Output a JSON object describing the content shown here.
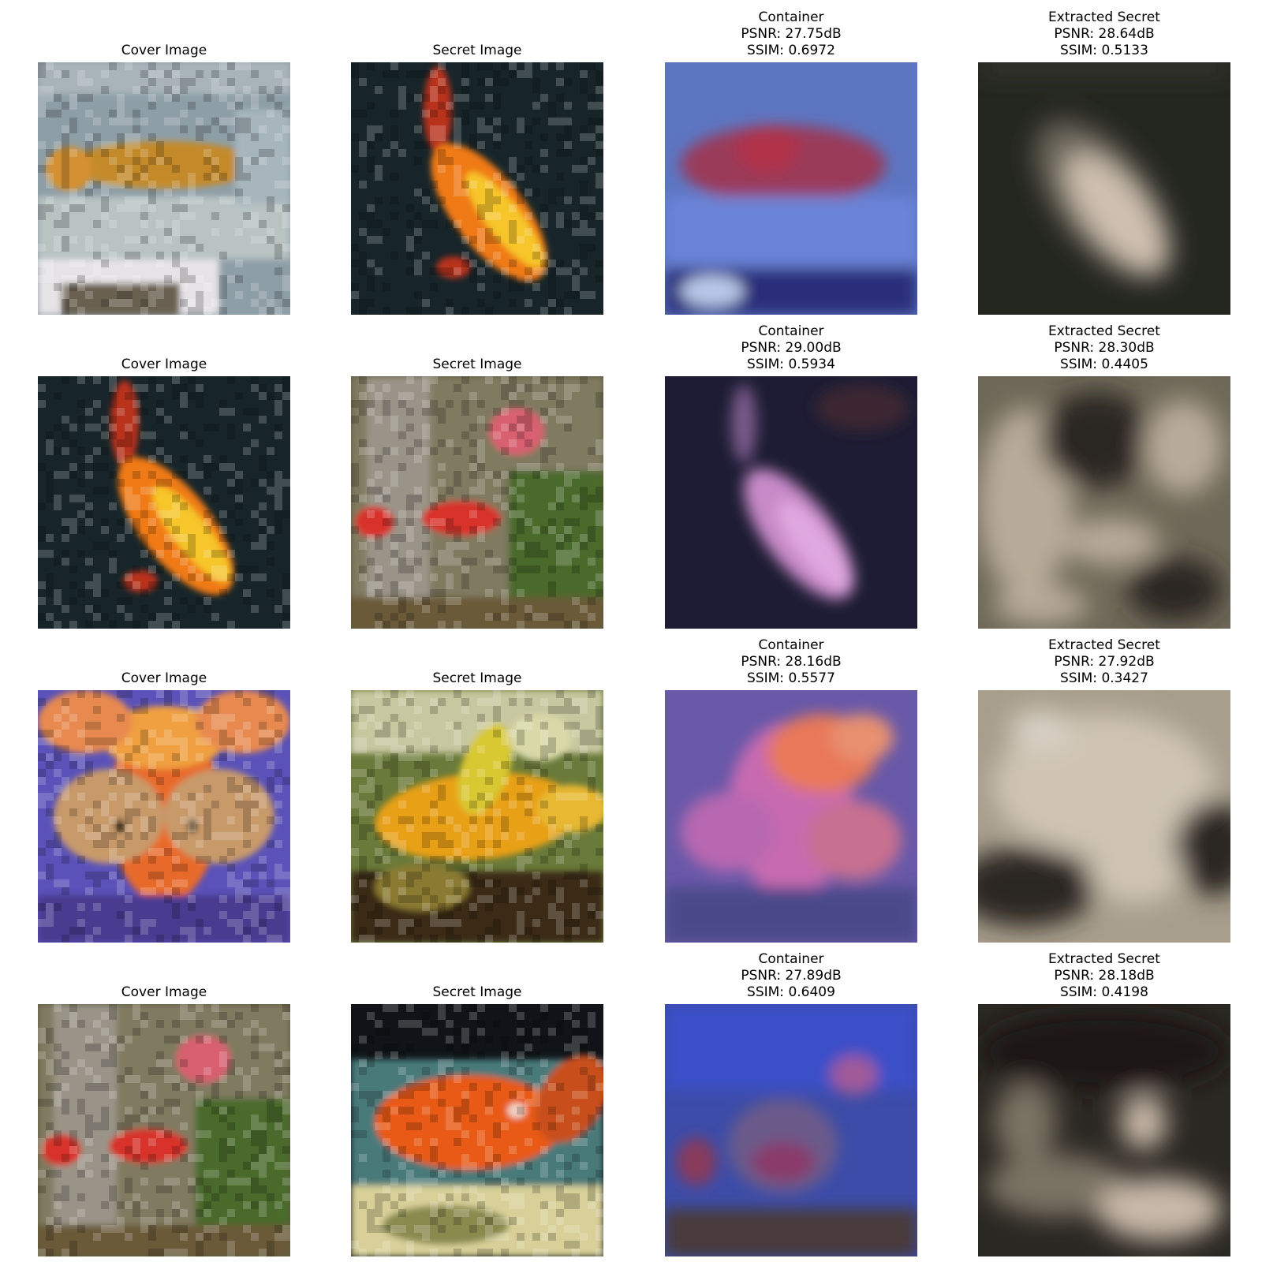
{
  "rows": [
    [
      {
        "lines": [
          "Cover Image"
        ],
        "palette": {
          "bg": "#8e9ea7",
          "a": "#c48a2a",
          "b": "#b8c3c2",
          "c": "#e6e3e6"
        },
        "scene": "cover-tank-fish"
      },
      {
        "lines": [
          "Secret Image"
        ],
        "palette": {
          "bg": "#17252a",
          "a": "#f07a16",
          "b": "#f6c62a",
          "c": "#b8321a"
        },
        "scene": "dark-diagonal-fish"
      },
      {
        "lines": [
          "Container",
          "PSNR: 27.75dB",
          "SSIM: 0.6972"
        ],
        "palette": {
          "bg": "#5c76c2",
          "a": "#9a3a5a",
          "b": "#e8d6c6",
          "c": "#2a2f7a"
        },
        "scene": "container-1"
      },
      {
        "lines": [
          "Extracted Secret",
          "PSNR: 28.64dB",
          "SSIM: 0.5133"
        ],
        "palette": {
          "bg": "#242620",
          "a": "#cfc0b0",
          "b": "#3e3c34",
          "c": "#6a665a"
        },
        "scene": "extracted-1"
      }
    ],
    [
      {
        "lines": [
          "Cover Image"
        ],
        "palette": {
          "bg": "#17252a",
          "a": "#f07a16",
          "b": "#f6c62a",
          "c": "#b8321a"
        },
        "scene": "dark-diagonal-fish"
      },
      {
        "lines": [
          "Secret Image"
        ],
        "palette": {
          "bg": "#5e5a3c",
          "a": "#d8322a",
          "b": "#7a8a4a",
          "c": "#b8a8a0"
        },
        "scene": "plants-fish"
      },
      {
        "lines": [
          "Container",
          "PSNR: 29.00dB",
          "SSIM: 0.5934"
        ],
        "palette": {
          "bg": "#1d1c34",
          "a": "#c88ac8",
          "b": "#3a3050",
          "c": "#5a4868"
        },
        "scene": "container-2"
      },
      {
        "lines": [
          "Extracted Secret",
          "PSNR: 28.30dB",
          "SSIM: 0.4405"
        ],
        "palette": {
          "bg": "#6e6858",
          "a": "#b8aa98",
          "b": "#2a2820",
          "c": "#4a463a"
        },
        "scene": "extracted-2"
      }
    ],
    [
      {
        "lines": [
          "Cover Image"
        ],
        "palette": {
          "bg": "#5a52b8",
          "a": "#e86a2a",
          "b": "#c89a6a",
          "c": "#f0a040"
        },
        "scene": "bubble-eye"
      },
      {
        "lines": [
          "Secret Image"
        ],
        "palette": {
          "bg": "#6a7a3a",
          "a": "#e8a018",
          "b": "#d8d8a8",
          "c": "#3a2a18"
        },
        "scene": "yellow-fish"
      },
      {
        "lines": [
          "Container",
          "PSNR: 28.16dB",
          "SSIM: 0.5577"
        ],
        "palette": {
          "bg": "#6858a8",
          "a": "#e87858",
          "b": "#c86ab0",
          "c": "#4a4a8a"
        },
        "scene": "container-3"
      },
      {
        "lines": [
          "Extracted Secret",
          "PSNR: 27.92dB",
          "SSIM: 0.3427"
        ],
        "palette": {
          "bg": "#a89e8c",
          "a": "#cfc4b4",
          "b": "#2a2820",
          "c": "#6a6456"
        },
        "scene": "extracted-3"
      }
    ],
    [
      {
        "lines": [
          "Cover Image"
        ],
        "palette": {
          "bg": "#5e5a3c",
          "a": "#d8322a",
          "b": "#7a8a4a",
          "c": "#b8a8a0"
        },
        "scene": "plants-fish"
      },
      {
        "lines": [
          "Secret Image"
        ],
        "palette": {
          "bg": "#101418",
          "a": "#e85a14",
          "b": "#4a7a7a",
          "c": "#d8d098"
        },
        "scene": "orange-fish-dark"
      },
      {
        "lines": [
          "Container",
          "PSNR: 27.89dB",
          "SSIM: 0.6409"
        ],
        "palette": {
          "bg": "#3c4ca8",
          "a": "#8a3a6a",
          "b": "#6a5a8a",
          "c": "#4a3a3a"
        },
        "scene": "container-4"
      },
      {
        "lines": [
          "Extracted Secret",
          "PSNR: 28.18dB",
          "SSIM: 0.4198"
        ],
        "palette": {
          "bg": "#2a2822",
          "a": "#c8b8a8",
          "b": "#7a7264",
          "c": "#1a1814"
        },
        "scene": "extracted-4"
      }
    ]
  ]
}
